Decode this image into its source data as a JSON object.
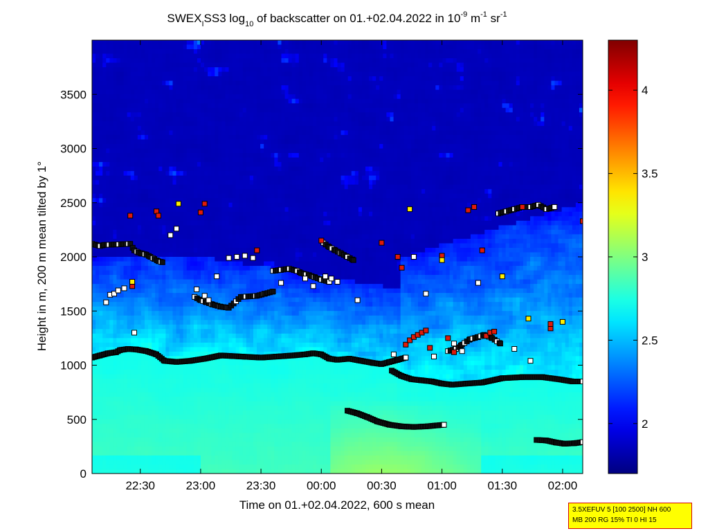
{
  "info_box": {
    "line1": "3.5XEFUV 5 [100 2500] NH 600",
    "line2": "MB 200 RG 15% TI 0 HI 15"
  },
  "chart_data": {
    "type": "heatmap",
    "title": {
      "station": "SWEX",
      "station_sub": "I",
      "instrument": "SS3 log",
      "log_base": "10",
      "body": " of backscatter on 01.+02.04.2022 in 10",
      "exp1": "-9",
      "unit1": " m",
      "exp2": "-1",
      "unit2": " sr",
      "exp3": "-1"
    },
    "xlabel": "Time on 01.+02.04.2022, 600 s mean",
    "ylabel": "Height in m, 200 m mean tilted by 1°",
    "x_ticks": [
      "22:30",
      "23:00",
      "23:30",
      "00:00",
      "00:30",
      "01:00",
      "01:30",
      "02:00"
    ],
    "x_tick_minutes": [
      30,
      60,
      90,
      120,
      150,
      180,
      210,
      240
    ],
    "xlim_minutes": [
      6,
      250
    ],
    "y_ticks": [
      0,
      500,
      1000,
      1500,
      2000,
      2500,
      3000,
      3500
    ],
    "ylim": [
      0,
      4000
    ],
    "colorbar": {
      "range": [
        1.7,
        4.3
      ],
      "ticks": [
        "2",
        "2.5",
        "3",
        "3.5",
        "4"
      ],
      "tick_values": [
        2,
        2.5,
        3,
        3.5,
        4
      ],
      "colormap": "jet"
    },
    "mixing_layer": [
      {
        "name": "layer-1-1100m",
        "t": [
          6,
          10,
          14,
          18,
          20,
          24,
          28,
          33,
          38,
          42,
          48,
          55,
          62,
          70,
          80,
          90,
          98,
          106,
          112,
          116,
          120,
          124,
          128,
          134,
          140,
          146,
          150,
          154,
          158,
          162
        ],
        "h": [
          1070,
          1090,
          1110,
          1120,
          1140,
          1150,
          1145,
          1130,
          1100,
          1040,
          1030,
          1040,
          1060,
          1090,
          1080,
          1070,
          1080,
          1090,
          1100,
          1110,
          1100,
          1060,
          1050,
          1060,
          1040,
          1020,
          1010,
          1030,
          1050,
          1070
        ]
      },
      {
        "name": "layer-2-900m",
        "t": [
          155,
          160,
          165,
          170,
          175,
          180,
          185,
          192,
          200,
          210,
          220,
          230,
          238,
          245,
          250
        ],
        "h": [
          950,
          900,
          870,
          860,
          850,
          830,
          820,
          830,
          840,
          880,
          890,
          890,
          870,
          850,
          850
        ]
      },
      {
        "name": "layer-3-500m",
        "t": [
          133,
          138,
          143,
          148,
          154,
          160,
          166,
          172,
          178,
          181
        ],
        "h": [
          580,
          555,
          520,
          480,
          450,
          435,
          430,
          435,
          445,
          450
        ]
      },
      {
        "name": "layer-4-300m",
        "t": [
          227,
          232,
          237,
          241,
          246,
          250
        ],
        "h": [
          310,
          305,
          285,
          275,
          280,
          290
        ]
      }
    ],
    "cloud_base": [
      {
        "name": "upper-left-2100m",
        "t": [
          6,
          8,
          10,
          12,
          25,
          27,
          29,
          31,
          33,
          35,
          37,
          39,
          41
        ],
        "h": [
          2120,
          2110,
          2100,
          2110,
          2120,
          2060,
          2040,
          2030,
          2020,
          2000,
          1980,
          1960,
          1950
        ]
      },
      {
        "name": "mid-1900m",
        "t": [
          96,
          100,
          104,
          108,
          110,
          114,
          117,
          120,
          124
        ],
        "h": [
          1870,
          1880,
          1890,
          1870,
          1850,
          1830,
          1810,
          1790,
          1770
        ]
      },
      {
        "name": "decline-2100m",
        "t": [
          121,
          124,
          127,
          130,
          133,
          136
        ],
        "h": [
          2130,
          2090,
          2060,
          2030,
          2000,
          1970
        ]
      },
      {
        "name": "low-1600m",
        "t": [
          57,
          60,
          63,
          66,
          70,
          74,
          80,
          88,
          92,
          96
        ],
        "h": [
          1630,
          1600,
          1580,
          1560,
          1540,
          1530,
          1630,
          1640,
          1660,
          1680
        ]
      },
      {
        "name": "ridge-2450m",
        "t": [
          208,
          212,
          216,
          220,
          224,
          228,
          232,
          236
        ],
        "h": [
          2400,
          2420,
          2440,
          2460,
          2460,
          2480,
          2440,
          2460
        ]
      },
      {
        "name": "hump-1200m",
        "t": [
          183,
          187,
          190,
          194,
          198,
          201,
          205,
          209
        ],
        "h": [
          1130,
          1150,
          1190,
          1240,
          1260,
          1280,
          1250,
          1200
        ]
      }
    ],
    "red_markers": {
      "t": [
        25,
        26,
        38,
        39,
        60,
        62,
        88,
        120,
        150,
        158,
        160,
        162,
        164,
        166,
        168,
        170,
        172,
        174,
        180,
        183,
        186,
        193,
        196,
        200,
        202,
        204,
        206,
        220,
        234,
        234,
        250
      ],
      "h": [
        2380,
        1730,
        2420,
        2380,
        2410,
        2490,
        2060,
        2150,
        2130,
        2000,
        1900,
        1190,
        1230,
        1260,
        1280,
        1300,
        1320,
        1160,
        2010,
        1250,
        1120,
        2430,
        2460,
        2060,
        1270,
        1300,
        1310,
        2460,
        1340,
        1380,
        2330
      ]
    },
    "yellow_markers": {
      "t": [
        26,
        49,
        164,
        180,
        210,
        223,
        240
      ],
      "h": [
        1770,
        2490,
        2440,
        1970,
        1820,
        1430,
        1400
      ]
    },
    "white_markers": {
      "t": [
        13,
        15,
        17,
        19,
        22,
        27,
        45,
        48,
        58,
        62,
        64,
        68,
        74,
        78,
        82,
        86,
        100,
        112,
        116,
        122,
        125,
        128,
        138,
        156,
        166,
        172,
        176,
        186,
        190,
        198,
        216,
        224
      ],
      "h": [
        1580,
        1650,
        1660,
        1690,
        1710,
        1300,
        2200,
        2260,
        1700,
        1640,
        1600,
        1820,
        1990,
        2000,
        2010,
        1990,
        1760,
        1800,
        1730,
        1820,
        1800,
        1770,
        1600,
        1100,
        2000,
        1660,
        1080,
        1200,
        1130,
        1760,
        1150,
        1040
      ]
    }
  }
}
